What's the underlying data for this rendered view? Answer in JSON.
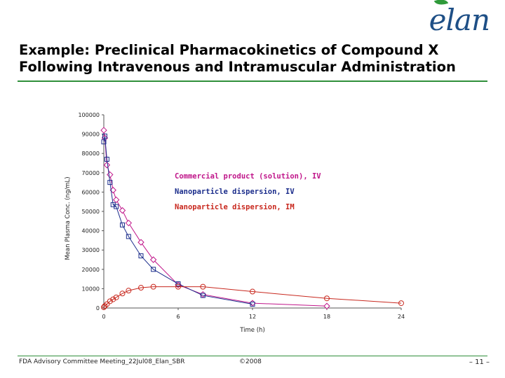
{
  "logo": {
    "text": "elan"
  },
  "title": "Example: Preclinical Pharmacokinetics of Compound X Following Intravenous and Intramuscular Administration",
  "footer": {
    "left": "FDA Advisory Committee Meeting_22Jul08_Elan_SBR",
    "center": "©2008",
    "right": "– 11 –"
  },
  "colors": {
    "accent_rule": "#2f8f3a",
    "logo": "#1e4f86"
  },
  "chart_data": {
    "type": "line",
    "xlabel": "Time (h)",
    "ylabel": "Mean Plasma Conc. (ng/mL)",
    "xlim": [
      0,
      24
    ],
    "ylim": [
      0,
      100000
    ],
    "xticks": [
      0,
      6,
      12,
      18,
      24
    ],
    "yticks": [
      0,
      10000,
      20000,
      30000,
      40000,
      50000,
      60000,
      70000,
      80000,
      90000,
      100000
    ],
    "grid": false,
    "legend_position": "inside-center",
    "series": [
      {
        "name": "Commercial product (solution), IV",
        "color": "#c0168a",
        "marker": "diamond",
        "points": [
          [
            0,
            92000
          ],
          [
            0.08,
            88000
          ],
          [
            0.25,
            74000
          ],
          [
            0.5,
            69000
          ],
          [
            0.75,
            61000
          ],
          [
            1,
            56000
          ],
          [
            1.5,
            50500
          ],
          [
            2,
            44000
          ],
          [
            3,
            34000
          ],
          [
            4,
            25000
          ],
          [
            6,
            12000
          ],
          [
            8,
            7000
          ],
          [
            12,
            2500
          ],
          [
            18,
            1000
          ]
        ]
      },
      {
        "name": "Nanoparticle dispersion, IV",
        "color": "#1c2e8c",
        "marker": "square",
        "points": [
          [
            0,
            86000
          ],
          [
            0.08,
            89000
          ],
          [
            0.25,
            77000
          ],
          [
            0.5,
            65000
          ],
          [
            0.75,
            53500
          ],
          [
            1,
            52500
          ],
          [
            1.5,
            43000
          ],
          [
            2,
            37000
          ],
          [
            3,
            27000
          ],
          [
            4,
            20000
          ],
          [
            6,
            12500
          ],
          [
            8,
            6500
          ],
          [
            12,
            2000
          ]
        ]
      },
      {
        "name": "Nanoparticle dispersion, IM",
        "color": "#c8281e",
        "marker": "circle",
        "points": [
          [
            0,
            400
          ],
          [
            0.08,
            1000
          ],
          [
            0.25,
            2000
          ],
          [
            0.5,
            3500
          ],
          [
            0.75,
            4500
          ],
          [
            1,
            5500
          ],
          [
            1.5,
            7500
          ],
          [
            2,
            9000
          ],
          [
            3,
            10500
          ],
          [
            4,
            11000
          ],
          [
            6,
            11000
          ],
          [
            8,
            11000
          ],
          [
            12,
            8500
          ],
          [
            18,
            5000
          ],
          [
            24,
            2500
          ]
        ]
      }
    ]
  }
}
